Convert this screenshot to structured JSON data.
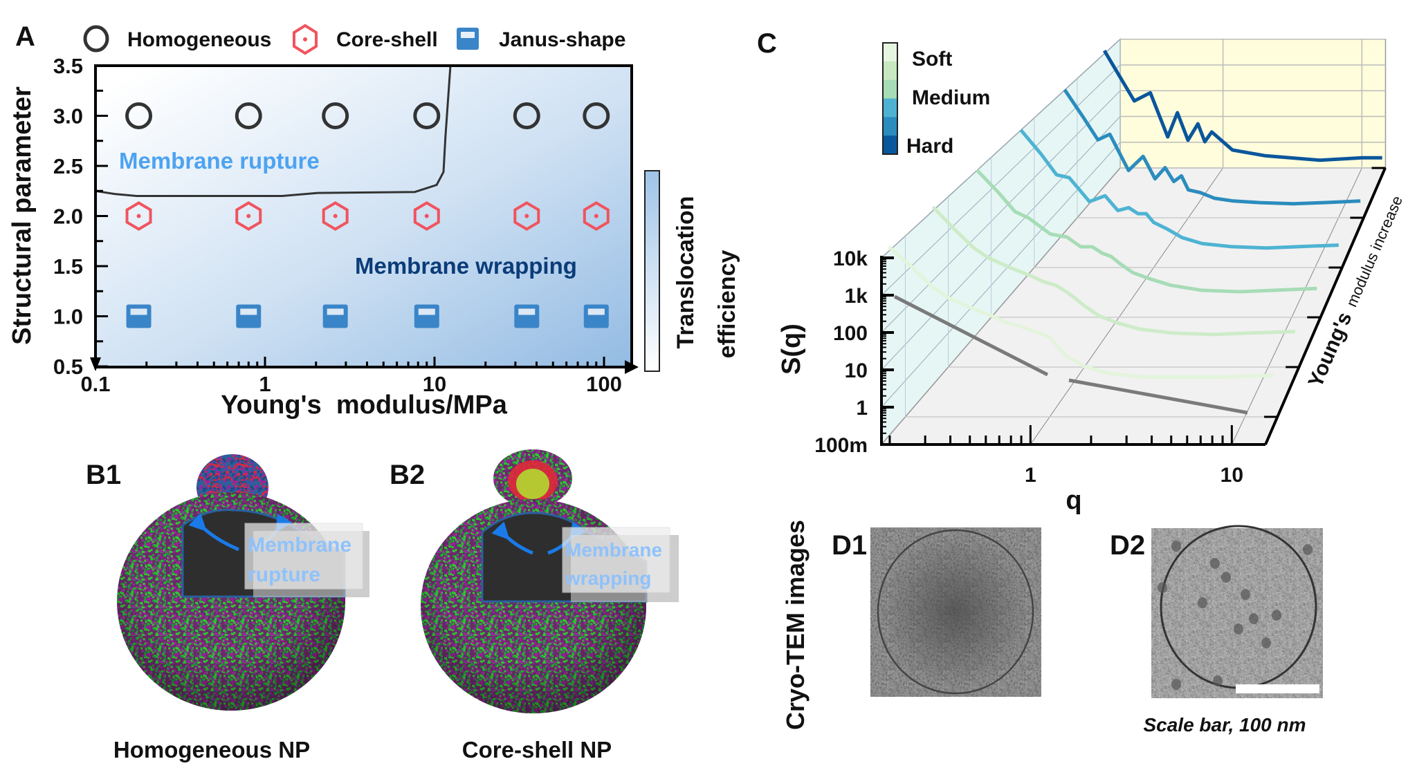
{
  "panel_labels": {
    "a": "A",
    "b1": "B1",
    "b2": "B2",
    "c": "C",
    "d1": "D1",
    "d2": "D2"
  },
  "panel_a": {
    "legend": [
      {
        "label": "Homogeneous",
        "icon": "circle-marker-icon",
        "color": "#333333"
      },
      {
        "label": "Core-shell",
        "icon": "hexagon-dot-marker-icon",
        "color": "#f0545e"
      },
      {
        "label": "Janus-shape",
        "icon": "janus-square-marker-icon",
        "color": "#3a85c8"
      }
    ],
    "region_labels": {
      "rupture": "Membrane rupture",
      "wrapping": "Membrane wrapping"
    },
    "region_colors": {
      "rupture": "#4da3f0",
      "wrapping": "#0b3c78"
    },
    "colorbar": {
      "label_line1": "Translocation",
      "label_line2": "efficiency",
      "colors": [
        "#ffffff",
        "#9fc4e8"
      ]
    }
  },
  "panel_b": {
    "b1": {
      "caption": "Homogeneous NP",
      "box_line1": "Membrane",
      "box_line2": "rupture"
    },
    "b2": {
      "caption": "Core-shell NP",
      "box_line1": "Membrane",
      "box_line2": "wrapping"
    },
    "colors": {
      "lipid_head": "#a020a0",
      "lipid_tail": "#2ecc2e",
      "arrow": "#1a7ae8",
      "core": "#b5c832",
      "shell": "#e0283a"
    }
  },
  "panel_d": {
    "side_label": "Cryo-TEM images",
    "scale_note": "Scale bar, 100 nm"
  },
  "chart_data": [
    {
      "type": "scatter",
      "xlabel": "Young's  modulus/MPa",
      "ylabel": "Structural parameter",
      "xscale": "log",
      "xlim": [
        0.1,
        140
      ],
      "ylim": [
        0.5,
        3.5
      ],
      "xticks": [
        "0.1",
        "1",
        "10",
        "100"
      ],
      "yticks": [
        "0.5",
        "1.0",
        "1.5",
        "2.0",
        "2.5",
        "3.0",
        "3.5"
      ],
      "legend": "top",
      "series": [
        {
          "name": "Homogeneous",
          "x": [
            0.18,
            0.8,
            2.6,
            9,
            35,
            90
          ],
          "y": [
            3.0,
            3.0,
            3.0,
            3.0,
            3.0,
            3.0
          ]
        },
        {
          "name": "Core-shell",
          "x": [
            0.18,
            0.8,
            2.6,
            9,
            35,
            90
          ],
          "y": [
            2.0,
            2.0,
            2.0,
            2.0,
            2.0,
            2.0
          ]
        },
        {
          "name": "Janus-shape",
          "x": [
            0.18,
            0.8,
            2.6,
            9,
            35,
            90
          ],
          "y": [
            1.0,
            1.0,
            1.0,
            1.0,
            1.0,
            1.0
          ]
        }
      ],
      "boundary": {
        "x": [
          0.1,
          0.13,
          0.175,
          1.26,
          2.05,
          7.65,
          10.3,
          11.3,
          11.6,
          12.4
        ],
        "y": [
          2.25,
          2.22,
          2.2,
          2.2,
          2.23,
          2.24,
          2.31,
          2.44,
          2.79,
          3.49
        ]
      }
    },
    {
      "type": "line",
      "projection": "3d",
      "xlabel": "q",
      "ylabel": "S(q)",
      "zlabel_part1": "Young's",
      "zlabel_part2": "modulus increase",
      "xscale": "log",
      "yscale": "log",
      "xlim": [
        0.18,
        15
      ],
      "ylim": [
        0.1,
        10000
      ],
      "xticks": [
        "1",
        "10"
      ],
      "yticks": [
        "100m",
        "1",
        "10",
        "100",
        "1k",
        "10k"
      ],
      "colorbar": {
        "labels": [
          "Soft",
          "Medium",
          "Hard"
        ],
        "colors": [
          "#e5f5e0",
          "#c7e9c0",
          "#a6dcb6",
          "#4eb3d3",
          "#2b8cbe",
          "#08589e"
        ]
      },
      "series": [
        {
          "color": "#e3f4dc",
          "q": [
            0.15,
            0.2,
            0.25,
            0.3,
            0.4,
            0.5,
            0.6,
            0.7,
            0.8,
            0.9,
            1,
            1.2,
            1.5,
            2,
            3,
            5,
            8,
            14
          ],
          "S": [
            5000,
            1260,
            400,
            200,
            100,
            63,
            40,
            32,
            25,
            20,
            16,
            5,
            2.5,
            1.6,
            1.26,
            1.26,
            1.26,
            1.4
          ]
        },
        {
          "color": "#cdebc8",
          "q": [
            0.15,
            0.2,
            0.25,
            0.3,
            0.4,
            0.5,
            0.6,
            0.7,
            0.8,
            0.9,
            1,
            1.2,
            1.5,
            2,
            3,
            5,
            8,
            14
          ],
          "S": [
            5000,
            1000,
            316,
            160,
            80,
            50,
            32,
            25,
            16,
            10,
            6.3,
            3.2,
            2,
            1.3,
            1,
            0.9,
            1,
            1.1
          ]
        },
        {
          "color": "#a6dcb6",
          "q": [
            0.15,
            0.2,
            0.25,
            0.3,
            0.4,
            0.5,
            0.6,
            0.7,
            0.8,
            0.9,
            1,
            1.2,
            1.5,
            2,
            3,
            5,
            8,
            14
          ],
          "S": [
            4000,
            800,
            200,
            126,
            40,
            32,
            16,
            16,
            10,
            8,
            5,
            2.5,
            1.6,
            1,
            0.7,
            0.63,
            0.7,
            0.8
          ]
        },
        {
          "color": "#4eb3d3",
          "q": [
            0.15,
            0.2,
            0.25,
            0.3,
            0.4,
            0.5,
            0.6,
            0.7,
            0.8,
            0.9,
            1,
            1.2,
            1.5,
            2,
            3,
            5,
            8,
            14
          ],
          "S": [
            4000,
            630,
            126,
            100,
            16,
            25,
            8,
            10,
            6.3,
            6.3,
            3.2,
            2,
            1,
            0.63,
            0.5,
            0.45,
            0.5,
            0.56
          ]
        },
        {
          "color": "#2b8cbe",
          "q": [
            0.15,
            0.2,
            0.25,
            0.3,
            0.4,
            0.5,
            0.6,
            0.7,
            0.8,
            0.9,
            1,
            1.2,
            1.5,
            2,
            3,
            5,
            8,
            14
          ],
          "S": [
            4000,
            400,
            63,
            100,
            5,
            16,
            2.5,
            6.3,
            2,
            3.2,
            1,
            0.8,
            0.5,
            0.4,
            0.35,
            0.32,
            0.35,
            0.4
          ]
        },
        {
          "color": "#0a569c",
          "q": [
            0.14,
            0.23,
            0.3,
            0.4,
            0.47,
            0.56,
            0.66,
            0.74,
            0.83,
            1.17,
            2,
            5,
            10,
            14
          ],
          "S": [
            3600,
            40,
            83,
            1.6,
            14,
            1.2,
            5.2,
            1.05,
            2.5,
            0.5,
            0.3,
            0.2,
            0.25,
            0.25
          ]
        }
      ]
    }
  ]
}
